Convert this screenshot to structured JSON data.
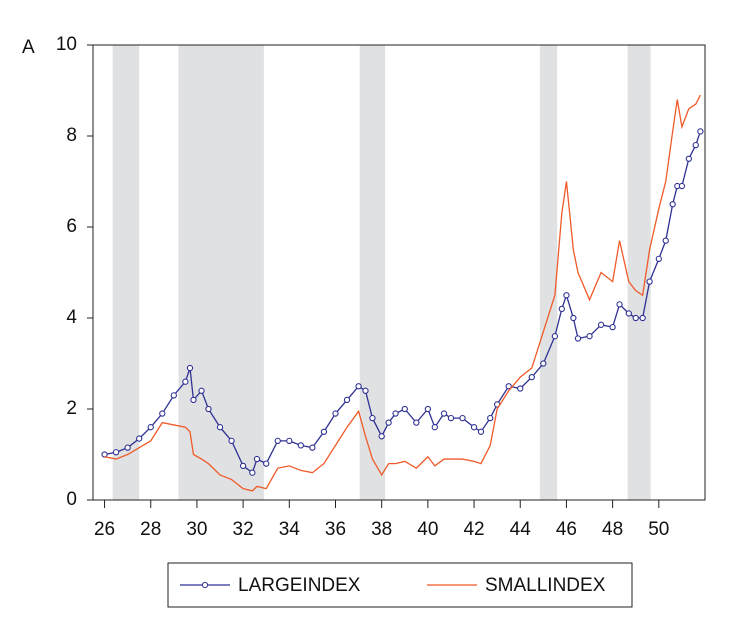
{
  "chart_data": {
    "type": "line",
    "panel_label": "A",
    "x": [
      26.0,
      26.5,
      27.0,
      27.5,
      28.0,
      28.5,
      29.0,
      29.5,
      29.7,
      29.85,
      30.2,
      30.5,
      31.0,
      31.5,
      32.0,
      32.4,
      32.6,
      33.0,
      33.5,
      34.0,
      34.5,
      35.0,
      35.5,
      36.0,
      36.5,
      37.0,
      37.3,
      37.6,
      38.0,
      38.3,
      38.6,
      39.0,
      39.5,
      40.0,
      40.3,
      40.7,
      41.0,
      41.5,
      42.0,
      42.3,
      42.7,
      43.0,
      43.5,
      44.0,
      44.5,
      45.0,
      45.5,
      45.8,
      46.0,
      46.3,
      46.5,
      47.0,
      47.5,
      48.0,
      48.3,
      48.7,
      49.0,
      49.3,
      49.6,
      50.0,
      50.3,
      50.6,
      50.8,
      51.0,
      51.3,
      51.6,
      51.8
    ],
    "series": [
      {
        "name": "LARGEINDEX",
        "color": "#2e3192",
        "marker": true,
        "values": [
          1.0,
          1.05,
          1.15,
          1.35,
          1.6,
          1.9,
          2.3,
          2.6,
          2.9,
          2.2,
          2.4,
          2.0,
          1.6,
          1.3,
          0.75,
          0.6,
          0.9,
          0.8,
          1.3,
          1.3,
          1.2,
          1.15,
          1.5,
          1.9,
          2.2,
          2.5,
          2.4,
          1.8,
          1.4,
          1.7,
          1.9,
          2.0,
          1.7,
          2.0,
          1.6,
          1.9,
          1.8,
          1.8,
          1.6,
          1.5,
          1.8,
          2.1,
          2.5,
          2.45,
          2.7,
          3.0,
          3.6,
          4.2,
          4.5,
          4.0,
          3.55,
          3.6,
          3.85,
          3.8,
          4.3,
          4.1,
          4.0,
          4.0,
          4.8,
          5.3,
          5.7,
          6.5,
          6.9,
          6.9,
          7.5,
          7.8,
          8.1
        ]
      },
      {
        "name": "SMALLINDEX",
        "color": "#f05a28",
        "marker": false,
        "values": [
          0.95,
          0.9,
          1.0,
          1.15,
          1.3,
          1.7,
          1.65,
          1.6,
          1.5,
          1.0,
          0.9,
          0.8,
          0.55,
          0.45,
          0.25,
          0.2,
          0.3,
          0.25,
          0.7,
          0.75,
          0.65,
          0.6,
          0.8,
          1.2,
          1.6,
          1.95,
          1.4,
          0.9,
          0.55,
          0.8,
          0.8,
          0.85,
          0.7,
          0.95,
          0.75,
          0.9,
          0.9,
          0.9,
          0.85,
          0.8,
          1.2,
          2.0,
          2.4,
          2.7,
          2.9,
          3.7,
          4.5,
          6.3,
          7.0,
          5.5,
          5.0,
          4.4,
          5.0,
          4.8,
          5.7,
          4.8,
          4.6,
          4.5,
          5.5,
          6.4,
          7.0,
          8.1,
          8.8,
          8.2,
          8.6,
          8.7,
          8.9
        ]
      }
    ],
    "shaded_periods": [
      [
        26.35,
        27.5
      ],
      [
        29.2,
        32.9
      ],
      [
        37.05,
        38.15
      ],
      [
        44.85,
        45.6
      ],
      [
        48.65,
        49.65
      ]
    ],
    "shade_color": "#e0e1e3",
    "xlim": [
      25.5,
      52
    ],
    "xticks": [
      26,
      28,
      30,
      32,
      34,
      36,
      38,
      40,
      42,
      44,
      46,
      48,
      50
    ],
    "ylim": [
      0,
      10
    ],
    "yticks": [
      0,
      2,
      4,
      6,
      8,
      10
    ],
    "legend": "bottom"
  }
}
